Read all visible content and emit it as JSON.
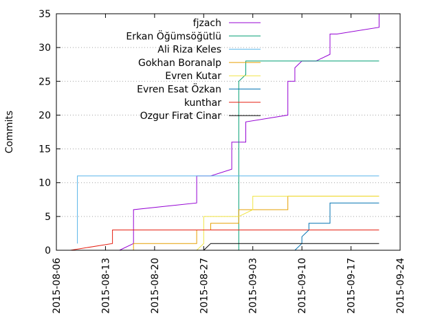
{
  "chart_data": {
    "type": "line",
    "title": "",
    "xlabel": "",
    "ylabel": "Commits",
    "ylim": [
      0,
      35
    ],
    "xlim": [
      "2015-08-06",
      "2015-09-24"
    ],
    "grid": "horizontal dotted",
    "legend_position": "top-left",
    "y_ticks": [
      {
        "value": 0,
        "label": "0"
      },
      {
        "value": 5,
        "label": "5"
      },
      {
        "value": 10,
        "label": "10"
      },
      {
        "value": 15,
        "label": "15"
      },
      {
        "value": 20,
        "label": "20"
      },
      {
        "value": 25,
        "label": "25"
      },
      {
        "value": 30,
        "label": "30"
      },
      {
        "value": 35,
        "label": "35"
      }
    ],
    "x_ticks": [
      {
        "value": "2015-08-06",
        "label": "2015-08-06"
      },
      {
        "value": "2015-08-13",
        "label": "2015-08-13"
      },
      {
        "value": "2015-08-20",
        "label": "2015-08-20"
      },
      {
        "value": "2015-08-27",
        "label": "2015-08-27"
      },
      {
        "value": "2015-09-03",
        "label": "2015-09-03"
      },
      {
        "value": "2015-09-10",
        "label": "2015-09-10"
      },
      {
        "value": "2015-09-17",
        "label": "2015-09-17"
      },
      {
        "value": "2015-09-24",
        "label": "2015-09-24"
      }
    ],
    "series": [
      {
        "name": "fjzach",
        "color": "#9400d3",
        "points": [
          [
            "2015-08-15",
            0
          ],
          [
            "2015-08-17",
            1
          ],
          [
            "2015-08-17",
            3
          ],
          [
            "2015-08-17",
            5
          ],
          [
            "2015-08-17",
            6
          ],
          [
            "2015-08-26",
            7
          ],
          [
            "2015-08-26",
            8
          ],
          [
            "2015-08-26",
            11
          ],
          [
            "2015-08-28",
            11
          ],
          [
            "2015-08-31",
            12
          ],
          [
            "2015-08-31",
            15
          ],
          [
            "2015-08-31",
            16
          ],
          [
            "2015-09-01",
            16
          ],
          [
            "2015-09-02",
            16
          ],
          [
            "2015-09-02",
            19
          ],
          [
            "2015-09-08",
            20
          ],
          [
            "2015-09-08",
            25
          ],
          [
            "2015-09-09",
            25
          ],
          [
            "2015-09-09",
            27
          ],
          [
            "2015-09-10",
            28
          ],
          [
            "2015-09-12",
            28
          ],
          [
            "2015-09-14",
            29
          ],
          [
            "2015-09-14",
            31
          ],
          [
            "2015-09-14",
            32
          ],
          [
            "2015-09-15",
            32
          ],
          [
            "2015-09-21",
            33
          ],
          [
            "2015-09-21",
            35
          ]
        ]
      },
      {
        "name": "Erkan Öğümsöğütlü",
        "color": "#009e73",
        "points": [
          [
            "2015-09-01",
            0
          ],
          [
            "2015-09-01",
            5
          ],
          [
            "2015-09-01",
            10
          ],
          [
            "2015-09-01",
            15
          ],
          [
            "2015-09-01",
            20
          ],
          [
            "2015-09-01",
            25
          ],
          [
            "2015-09-02",
            26
          ],
          [
            "2015-09-02",
            27
          ],
          [
            "2015-09-02",
            28
          ],
          [
            "2015-09-21",
            28
          ]
        ]
      },
      {
        "name": "Ali Riza Keles",
        "color": "#56b4e9",
        "points": [
          [
            "2015-08-09",
            1
          ],
          [
            "2015-08-09",
            11
          ],
          [
            "2015-09-21",
            11
          ]
        ]
      },
      {
        "name": "Gokhan Boranalp",
        "color": "#e69f00",
        "points": [
          [
            "2015-08-17",
            0
          ],
          [
            "2015-08-17",
            1
          ],
          [
            "2015-08-26",
            1
          ],
          [
            "2015-08-26",
            2
          ],
          [
            "2015-08-26",
            3
          ],
          [
            "2015-08-28",
            3
          ],
          [
            "2015-08-28",
            4
          ],
          [
            "2015-09-01",
            4
          ],
          [
            "2015-09-01",
            5
          ],
          [
            "2015-09-01",
            6
          ],
          [
            "2015-09-08",
            6
          ],
          [
            "2015-09-08",
            7
          ],
          [
            "2015-09-08",
            8
          ],
          [
            "2015-09-21",
            8
          ]
        ]
      },
      {
        "name": "Evren Kutar",
        "color": "#f0e442",
        "points": [
          [
            "2015-08-26",
            0
          ],
          [
            "2015-08-27",
            1
          ],
          [
            "2015-08-27",
            2
          ],
          [
            "2015-08-27",
            3
          ],
          [
            "2015-08-27",
            4
          ],
          [
            "2015-08-27",
            5
          ],
          [
            "2015-09-01",
            5
          ],
          [
            "2015-09-03",
            6
          ],
          [
            "2015-09-03",
            7
          ],
          [
            "2015-09-03",
            8
          ],
          [
            "2015-09-21",
            8
          ]
        ]
      },
      {
        "name": "Evren Esat Özkan",
        "color": "#0072b2",
        "points": [
          [
            "2015-09-09",
            0
          ],
          [
            "2015-09-10",
            1
          ],
          [
            "2015-09-10",
            2
          ],
          [
            "2015-09-11",
            3
          ],
          [
            "2015-09-11",
            4
          ],
          [
            "2015-09-14",
            4
          ],
          [
            "2015-09-14",
            5
          ],
          [
            "2015-09-14",
            6
          ],
          [
            "2015-09-14",
            7
          ],
          [
            "2015-09-21",
            7
          ]
        ]
      },
      {
        "name": "kunthar",
        "color": "#e51e10",
        "points": [
          [
            "2015-08-08",
            0
          ],
          [
            "2015-08-14",
            1
          ],
          [
            "2015-08-14",
            2
          ],
          [
            "2015-08-14",
            3
          ],
          [
            "2015-09-21",
            3
          ]
        ]
      },
      {
        "name": "Ozgur Firat Cinar",
        "color": "#000000",
        "points": [
          [
            "2015-08-27",
            0
          ],
          [
            "2015-08-28",
            1
          ],
          [
            "2015-09-21",
            1
          ]
        ]
      }
    ]
  }
}
